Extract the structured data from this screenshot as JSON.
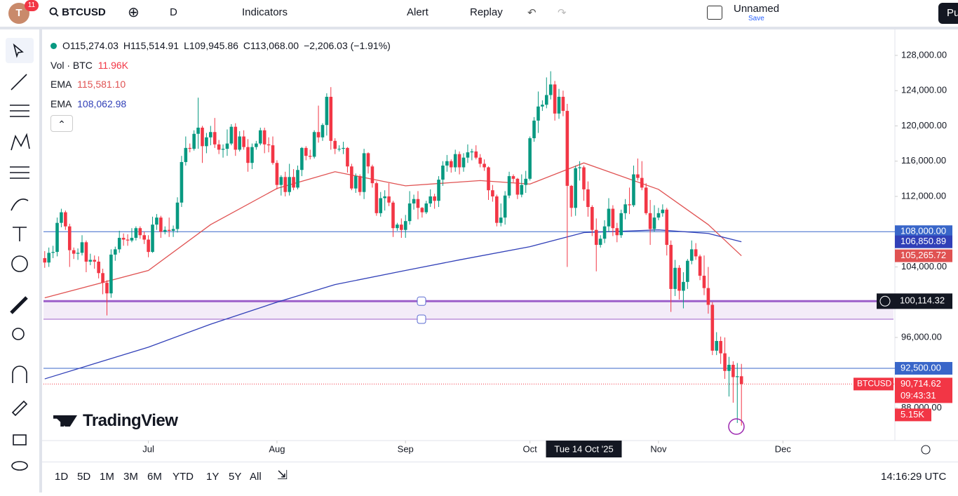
{
  "toolbar": {
    "avatar": "T",
    "badge": "11",
    "symbol": "BTCUSD",
    "interval": "D",
    "indicators": "Indicators",
    "alert": "Alert",
    "replay": "Replay",
    "layout_name": "Unnamed",
    "save": "Save",
    "publish": "Pu"
  },
  "legend": {
    "ohlc": [
      "O115,274.03",
      "H115,514.91",
      "L109,945.86",
      "C113,068.00",
      "−2,206.03 (−1.91%)"
    ],
    "vol_name": "Vol · BTC",
    "vol_value": "11.96K",
    "ema1_name": "EMA",
    "ema1_value": "115,581.10",
    "ema2_name": "EMA",
    "ema2_value": "108,062.98"
  },
  "chart_data": {
    "type": "candlestick",
    "ylim": [
      84540,
      130700
    ],
    "xlim": [
      -0.3,
      205
    ],
    "yticks": [
      {
        "value": 128000,
        "label": "128,000.00"
      },
      {
        "value": 124000,
        "label": "124,000.00"
      },
      {
        "value": 120000,
        "label": "120,000.00"
      },
      {
        "value": 116000,
        "label": "116,000.00"
      },
      {
        "value": 112000,
        "label": "112,000.00"
      },
      {
        "value": 104000,
        "label": "104,000.00"
      },
      {
        "value": 96000,
        "label": "96,000.00"
      },
      {
        "value": 88000,
        "label": "88,000.00"
      }
    ],
    "xticks": [
      {
        "value": 25,
        "label": "Jul"
      },
      {
        "value": 56,
        "label": "Aug"
      },
      {
        "value": 87,
        "label": "Sep"
      },
      {
        "value": 117,
        "label": "Oct"
      },
      {
        "value": 148,
        "label": "Nov"
      },
      {
        "value": 178,
        "label": "Dec"
      }
    ],
    "up_color": "#089981",
    "down_color": "#f23645",
    "candles": [
      [
        105000,
        105800,
        103900,
        104500
      ],
      [
        104500,
        106200,
        104000,
        105600
      ],
      [
        105600,
        106400,
        105000,
        105700
      ],
      [
        105700,
        109600,
        105200,
        109000
      ],
      [
        109000,
        110600,
        108500,
        110200
      ],
      [
        110200,
        110400,
        108200,
        108600
      ],
      [
        108600,
        108900,
        104000,
        105900
      ],
      [
        105900,
        106200,
        104900,
        105500
      ],
      [
        105500,
        106100,
        104800,
        105600
      ],
      [
        105600,
        107600,
        105300,
        106800
      ],
      [
        106800,
        107000,
        103400,
        104600
      ],
      [
        104600,
        105500,
        104200,
        104800
      ],
      [
        104800,
        105300,
        103800,
        104600
      ],
      [
        104600,
        105200,
        102700,
        103300
      ],
      [
        103300,
        103800,
        100900,
        102200
      ],
      [
        102200,
        102500,
        98500,
        101000
      ],
      [
        101000,
        106000,
        100500,
        105400
      ],
      [
        105400,
        106300,
        104700,
        106000
      ],
      [
        106000,
        108100,
        105600,
        107300
      ],
      [
        107300,
        107800,
        106400,
        107100
      ],
      [
        107100,
        107700,
        106400,
        107000
      ],
      [
        107000,
        108400,
        106800,
        107300
      ],
      [
        107300,
        108600,
        107000,
        108400
      ],
      [
        108400,
        108600,
        107200,
        107600
      ],
      [
        107600,
        108000,
        106600,
        107100
      ],
      [
        107100,
        107600,
        105100,
        105700
      ],
      [
        105700,
        109700,
        105600,
        108800
      ],
      [
        108800,
        110000,
        108200,
        109600
      ],
      [
        109600,
        109800,
        107300,
        108000
      ],
      [
        108000,
        108600,
        107700,
        108200
      ],
      [
        108200,
        109600,
        107400,
        108100
      ],
      [
        108100,
        108700,
        107400,
        108300
      ],
      [
        108300,
        111900,
        107900,
        111300
      ],
      [
        111300,
        116600,
        110800,
        115900
      ],
      [
        115900,
        118800,
        115500,
        117500
      ],
      [
        117500,
        118000,
        117000,
        117400
      ],
      [
        117400,
        119500,
        117200,
        119100
      ],
      [
        119100,
        123200,
        117400,
        119800
      ],
      [
        119800,
        120000,
        115800,
        117700
      ],
      [
        117700,
        119200,
        116900,
        118700
      ],
      [
        118700,
        120000,
        117800,
        119300
      ],
      [
        119300,
        120900,
        117500,
        117900
      ],
      [
        117900,
        118400,
        116800,
        117300
      ],
      [
        117300,
        117900,
        116400,
        117400
      ],
      [
        117400,
        119600,
        116600,
        118000
      ],
      [
        118000,
        120200,
        117800,
        119900
      ],
      [
        119900,
        120300,
        116600,
        117300
      ],
      [
        117300,
        119400,
        117100,
        118800
      ],
      [
        118800,
        119500,
        117300,
        117600
      ],
      [
        117600,
        118500,
        114800,
        115800
      ],
      [
        115800,
        118000,
        115100,
        117600
      ],
      [
        117600,
        118300,
        117300,
        118000
      ],
      [
        118000,
        119800,
        117800,
        119500
      ],
      [
        119500,
        119800,
        116900,
        117900
      ],
      [
        117900,
        118700,
        117000,
        117800
      ],
      [
        117800,
        118800,
        115600,
        115800
      ],
      [
        115800,
        116100,
        112800,
        113300
      ],
      [
        113300,
        114400,
        112100,
        114200
      ],
      [
        114200,
        114800,
        112000,
        112500
      ],
      [
        112500,
        115700,
        112100,
        114200
      ],
      [
        114200,
        115100,
        112700,
        113000
      ],
      [
        113000,
        115500,
        112800,
        115000
      ],
      [
        115000,
        117600,
        114300,
        117500
      ],
      [
        117500,
        117700,
        116100,
        116600
      ],
      [
        116600,
        117300,
        116200,
        116500
      ],
      [
        116500,
        119500,
        116300,
        119300
      ],
      [
        119300,
        122300,
        118100,
        118700
      ],
      [
        118700,
        120300,
        118300,
        120100
      ],
      [
        120100,
        123700,
        118900,
        123300
      ],
      [
        123300,
        124400,
        117300,
        118300
      ],
      [
        118300,
        118600,
        116800,
        117400
      ],
      [
        117400,
        117800,
        117100,
        117400
      ],
      [
        117400,
        118200,
        116800,
        117500
      ],
      [
        117500,
        117600,
        114700,
        115400
      ],
      [
        115400,
        115700,
        112700,
        112900
      ],
      [
        112900,
        114600,
        112400,
        114300
      ],
      [
        114300,
        114500,
        112100,
        112500
      ],
      [
        112500,
        117400,
        111700,
        116900
      ],
      [
        116900,
        117000,
        114600,
        115400
      ],
      [
        115400,
        115600,
        113000,
        113500
      ],
      [
        113500,
        113700,
        109800,
        110100
      ],
      [
        110100,
        112500,
        109700,
        111800
      ],
      [
        111800,
        112700,
        110400,
        112000
      ],
      [
        112000,
        113500,
        110900,
        111300
      ],
      [
        111300,
        111500,
        107400,
        108400
      ],
      [
        108400,
        109000,
        108100,
        108800
      ],
      [
        108800,
        109500,
        107300,
        108200
      ],
      [
        108200,
        109900,
        107300,
        109200
      ],
      [
        109200,
        112600,
        108800,
        111200
      ],
      [
        111200,
        112200,
        110500,
        111700
      ],
      [
        111700,
        112600,
        109400,
        110700
      ],
      [
        110700,
        110800,
        109600,
        110200
      ],
      [
        110200,
        111500,
        110000,
        111200
      ],
      [
        111200,
        112800,
        110800,
        112000
      ],
      [
        112000,
        112300,
        110600,
        111500
      ],
      [
        111500,
        114300,
        110800,
        113900
      ],
      [
        113900,
        116000,
        113200,
        115500
      ],
      [
        115500,
        116700,
        114800,
        116000
      ],
      [
        116000,
        116200,
        114700,
        115300
      ],
      [
        115300,
        117300,
        114800,
        116800
      ],
      [
        116800,
        117100,
        114500,
        115300
      ],
      [
        115300,
        116900,
        114800,
        116400
      ],
      [
        116400,
        117900,
        115800,
        117000
      ],
      [
        117000,
        117400,
        116100,
        117100
      ],
      [
        117100,
        117800,
        116200,
        116400
      ],
      [
        116400,
        116800,
        115300,
        115700
      ],
      [
        115700,
        116200,
        114900,
        115300
      ],
      [
        115300,
        115400,
        111600,
        112700
      ],
      [
        112700,
        113300,
        111400,
        112000
      ],
      [
        112000,
        112200,
        108600,
        109000
      ],
      [
        109000,
        111200,
        108600,
        109600
      ],
      [
        109600,
        112600,
        108800,
        112100
      ],
      [
        112100,
        114800,
        111800,
        114300
      ],
      [
        114300,
        114500,
        113600,
        114000
      ],
      [
        114000,
        114100,
        111700,
        112200
      ],
      [
        112200,
        114500,
        111900,
        113300
      ],
      [
        113300,
        114900,
        112400,
        114000
      ],
      [
        114000,
        118800,
        113800,
        118600
      ],
      [
        118600,
        121000,
        118200,
        120600
      ],
      [
        120600,
        123900,
        119200,
        122200
      ],
      [
        122200,
        122900,
        121700,
        122400
      ],
      [
        122400,
        125500,
        122000,
        123500
      ],
      [
        123500,
        126200,
        123000,
        124700
      ],
      [
        124700,
        125100,
        120600,
        121400
      ],
      [
        121400,
        124200,
        120800,
        123300
      ],
      [
        123300,
        124000,
        121100,
        121700
      ],
      [
        121700,
        122500,
        104000,
        113200
      ],
      [
        113200,
        113300,
        109700,
        110700
      ],
      [
        110700,
        115500,
        109800,
        115200
      ],
      [
        115200,
        116000,
        113800,
        115300
      ],
      [
        115300,
        115500,
        111500,
        112800
      ],
      [
        112800,
        113700,
        109700,
        110800
      ],
      [
        110800,
        111000,
        107500,
        108200
      ],
      [
        108200,
        109500,
        103500,
        106500
      ],
      [
        106500,
        107600,
        106200,
        107200
      ],
      [
        107200,
        109300,
        106700,
        108600
      ],
      [
        108600,
        111800,
        108000,
        110600
      ],
      [
        110600,
        111000,
        107500,
        108400
      ],
      [
        108400,
        109000,
        106800,
        107600
      ],
      [
        107600,
        110500,
        107300,
        110100
      ],
      [
        110100,
        111700,
        109400,
        111100
      ],
      [
        111100,
        113000,
        110000,
        111000
      ],
      [
        111000,
        115500,
        110800,
        114500
      ],
      [
        114500,
        116300,
        113800,
        114100
      ],
      [
        114100,
        116000,
        112700,
        113000
      ],
      [
        113000,
        113500,
        109900,
        110100
      ],
      [
        110100,
        111600,
        106500,
        108300
      ],
      [
        108300,
        111000,
        108000,
        109600
      ],
      [
        109600,
        110700,
        109300,
        110100
      ],
      [
        110100,
        111100,
        109700,
        110500
      ],
      [
        110500,
        110700,
        105300,
        106500
      ],
      [
        106500,
        107000,
        98900,
        101500
      ],
      [
        101500,
        104800,
        100700,
        103900
      ],
      [
        103900,
        104200,
        100300,
        101300
      ],
      [
        101300,
        103400,
        99300,
        102300
      ],
      [
        102300,
        104900,
        101500,
        104700
      ],
      [
        104700,
        107000,
        104300,
        106000
      ],
      [
        106000,
        106700,
        104800,
        105200
      ],
      [
        105200,
        105400,
        102500,
        103000
      ],
      [
        103000,
        105300,
        100800,
        101600
      ],
      [
        101600,
        104000,
        98700,
        99700
      ],
      [
        99700,
        100000,
        94000,
        94500
      ],
      [
        94500,
        96600,
        94000,
        95600
      ],
      [
        95600,
        96100,
        93000,
        94200
      ],
      [
        94200,
        96000,
        91300,
        92200
      ],
      [
        92200,
        93800,
        89300,
        92900
      ],
      [
        92900,
        93300,
        88600,
        91500
      ],
      [
        91500,
        93100,
        86300,
        91600
      ],
      [
        91600,
        93000,
        86000,
        90714.62
      ]
    ],
    "ema": [
      {
        "color": "#e05252",
        "last_label": "105,265.72",
        "x": [
          0,
          25,
          40,
          56,
          70,
          87,
          105,
          117,
          130,
          148,
          160,
          168
        ],
        "values": [
          100500,
          103600,
          108800,
          112900,
          114800,
          113200,
          113800,
          113400,
          115800,
          112800,
          108800,
          105265.72
        ]
      },
      {
        "color": "#3140b8",
        "last_label": "106,850.89",
        "x": [
          0,
          25,
          40,
          56,
          70,
          87,
          100,
          117,
          130,
          148,
          160,
          168
        ],
        "values": [
          91300,
          94900,
          97500,
          100000,
          102000,
          103600,
          104800,
          106300,
          107900,
          108200,
          107800,
          106850.89
        ]
      }
    ],
    "hlines": [
      {
        "value": 108000,
        "label": "108,000.00",
        "color": "#3966c9"
      },
      {
        "value": 92500,
        "label": "92,500.00",
        "color": "#3966c9"
      }
    ],
    "zone": {
      "low": 98070,
      "high": 100114.32,
      "color": "#9c5fc9"
    },
    "last_price": {
      "value": 90714.62,
      "label": "90,714.62",
      "symbol": "BTCUSD",
      "countdown": "09:43:31",
      "volume": "5.15K"
    },
    "crosshair": {
      "index": 130,
      "time_label": "Tue 14 Oct '25",
      "price": {
        "value": 100114.32,
        "label": "100,114.32"
      }
    }
  },
  "watermark": "TradingView",
  "footer": {
    "ranges": [
      "1D",
      "5D",
      "1M",
      "3M",
      "6M",
      "YTD",
      "1Y",
      "5Y",
      "All"
    ],
    "clock": "14:16:29 UTC"
  }
}
